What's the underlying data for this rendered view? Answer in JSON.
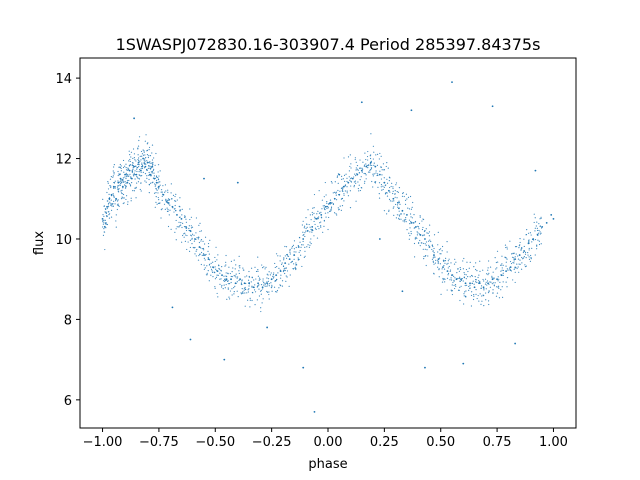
{
  "chart_data": {
    "type": "scatter",
    "title": "1SWASPJ072830.16-303907.4 Period 285397.84375s",
    "xlabel": "phase",
    "ylabel": "flux",
    "xlim": [
      -1.1,
      1.1
    ],
    "ylim": [
      5.3,
      14.5
    ],
    "xticks": [
      -1.0,
      -0.75,
      -0.5,
      -0.25,
      0.0,
      0.25,
      0.5,
      0.75,
      1.0
    ],
    "xtick_labels": [
      "−1.00",
      "−0.75",
      "−0.50",
      "−0.25",
      "0.00",
      "0.25",
      "0.50",
      "0.75",
      "1.00"
    ],
    "yticks": [
      6,
      8,
      10,
      12,
      14
    ],
    "ytick_labels": [
      "6",
      "8",
      "10",
      "12",
      "14"
    ],
    "grid": false,
    "legend": "none",
    "marker_color": "#1f77b4",
    "series": [
      {
        "points": [
          [
            -1.0,
            10.5
          ],
          [
            -0.99,
            10.3
          ],
          [
            -0.98,
            10.8
          ],
          [
            -0.97,
            11.0
          ],
          [
            -0.96,
            11.1
          ],
          [
            -0.95,
            11.3
          ],
          [
            -0.94,
            11.0
          ],
          [
            -0.93,
            11.4
          ],
          [
            -0.92,
            11.5
          ],
          [
            -0.91,
            11.3
          ],
          [
            -0.9,
            11.6
          ],
          [
            -0.89,
            11.4
          ],
          [
            -0.88,
            11.7
          ],
          [
            -0.87,
            11.5
          ],
          [
            -0.86,
            11.8
          ],
          [
            -0.85,
            11.6
          ],
          [
            -0.84,
            11.9
          ],
          [
            -0.83,
            11.7
          ],
          [
            -0.82,
            12.0
          ],
          [
            -0.81,
            11.8
          ],
          [
            -0.8,
            11.9
          ],
          [
            -0.79,
            11.6
          ],
          [
            -0.78,
            11.8
          ],
          [
            -0.77,
            11.5
          ],
          [
            -0.76,
            11.4
          ],
          [
            -0.75,
            11.3
          ],
          [
            -0.73,
            11.1
          ],
          [
            -0.71,
            10.9
          ],
          [
            -0.69,
            10.8
          ],
          [
            -0.67,
            10.6
          ],
          [
            -0.65,
            10.5
          ],
          [
            -0.63,
            10.3
          ],
          [
            -0.61,
            10.2
          ],
          [
            -0.59,
            10.0
          ],
          [
            -0.57,
            9.8
          ],
          [
            -0.55,
            9.6
          ],
          [
            -0.53,
            9.5
          ],
          [
            -0.51,
            9.3
          ],
          [
            -0.49,
            9.2
          ],
          [
            -0.47,
            9.1
          ],
          [
            -0.45,
            9.0
          ],
          [
            -0.43,
            9.0
          ],
          [
            -0.41,
            8.9
          ],
          [
            -0.39,
            9.0
          ],
          [
            -0.37,
            8.9
          ],
          [
            -0.35,
            8.9
          ],
          [
            -0.33,
            8.8
          ],
          [
            -0.31,
            8.9
          ],
          [
            -0.29,
            8.8
          ],
          [
            -0.27,
            8.9
          ],
          [
            -0.25,
            9.0
          ],
          [
            -0.23,
            9.1
          ],
          [
            -0.21,
            9.2
          ],
          [
            -0.19,
            9.4
          ],
          [
            -0.17,
            9.5
          ],
          [
            -0.15,
            9.6
          ],
          [
            -0.13,
            9.8
          ],
          [
            -0.11,
            10.0
          ],
          [
            -0.09,
            10.2
          ],
          [
            -0.07,
            10.3
          ],
          [
            -0.05,
            10.5
          ],
          [
            -0.03,
            10.6
          ],
          [
            -0.01,
            10.8
          ],
          [
            0.01,
            10.9
          ],
          [
            0.03,
            11.0
          ],
          [
            0.05,
            11.1
          ],
          [
            0.07,
            11.3
          ],
          [
            0.09,
            11.4
          ],
          [
            0.11,
            11.5
          ],
          [
            0.13,
            11.6
          ],
          [
            0.15,
            11.7
          ],
          [
            0.17,
            11.8
          ],
          [
            0.19,
            11.9
          ],
          [
            0.21,
            11.8
          ],
          [
            0.23,
            11.6
          ],
          [
            0.25,
            11.4
          ],
          [
            0.27,
            11.2
          ],
          [
            0.29,
            11.0
          ],
          [
            0.31,
            10.9
          ],
          [
            0.33,
            10.7
          ],
          [
            0.35,
            10.6
          ],
          [
            0.37,
            10.4
          ],
          [
            0.39,
            10.3
          ],
          [
            0.41,
            10.1
          ],
          [
            0.43,
            10.0
          ],
          [
            0.45,
            9.8
          ],
          [
            0.47,
            9.6
          ],
          [
            0.49,
            9.5
          ],
          [
            0.51,
            9.3
          ],
          [
            0.53,
            9.2
          ],
          [
            0.55,
            9.1
          ],
          [
            0.57,
            9.0
          ],
          [
            0.59,
            9.0
          ],
          [
            0.61,
            8.9
          ],
          [
            0.63,
            8.9
          ],
          [
            0.65,
            8.8
          ],
          [
            0.67,
            8.9
          ],
          [
            0.69,
            8.8
          ],
          [
            0.71,
            8.9
          ],
          [
            0.73,
            9.0
          ],
          [
            0.75,
            9.0
          ],
          [
            0.77,
            9.1
          ],
          [
            0.79,
            9.2
          ],
          [
            0.81,
            9.3
          ],
          [
            0.83,
            9.5
          ],
          [
            0.85,
            9.6
          ],
          [
            0.87,
            9.7
          ],
          [
            0.89,
            9.9
          ],
          [
            0.91,
            10.0
          ],
          [
            0.93,
            10.1
          ],
          [
            0.95,
            10.3
          ],
          [
            0.97,
            10.4
          ],
          [
            0.99,
            10.6
          ],
          [
            1.0,
            10.5
          ],
          [
            -0.86,
            13.0
          ],
          [
            -0.69,
            8.3
          ],
          [
            -0.61,
            7.5
          ],
          [
            -0.55,
            11.5
          ],
          [
            -0.46,
            7.0
          ],
          [
            -0.4,
            11.4
          ],
          [
            -0.27,
            7.8
          ],
          [
            -0.11,
            6.8
          ],
          [
            -0.06,
            5.7
          ],
          [
            0.05,
            11.6
          ],
          [
            0.15,
            13.4
          ],
          [
            0.23,
            10.0
          ],
          [
            0.33,
            8.7
          ],
          [
            0.37,
            13.2
          ],
          [
            0.43,
            6.8
          ],
          [
            0.55,
            13.9
          ],
          [
            0.6,
            6.9
          ],
          [
            0.73,
            13.3
          ],
          [
            0.83,
            7.4
          ],
          [
            0.92,
            11.7
          ]
        ]
      }
    ]
  }
}
